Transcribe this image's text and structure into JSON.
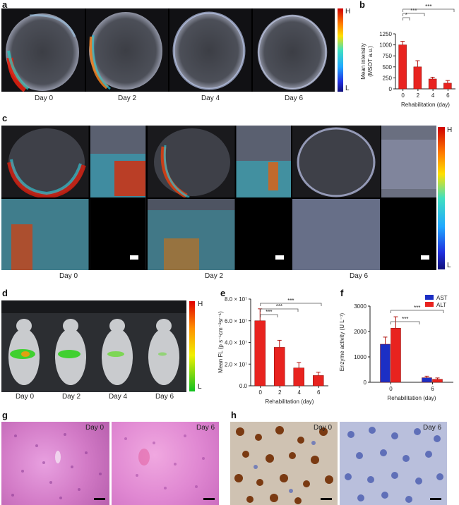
{
  "panels": {
    "a": {
      "label": "a",
      "days": [
        "Day 0",
        "Day 2",
        "Day 4",
        "Day 6"
      ],
      "scale": {
        "high": "H",
        "low": "L"
      }
    },
    "b": {
      "label": "b",
      "chart": {
        "type": "bar",
        "categories": [
          "0",
          "2",
          "4",
          "6"
        ],
        "values": [
          1000,
          500,
          225,
          130
        ],
        "errors": [
          80,
          140,
          40,
          60
        ],
        "ylim": [
          0,
          1250
        ],
        "yticks": [
          "0",
          "250",
          "500",
          "750",
          "1000",
          "1250"
        ],
        "ylabel_line1": "Mean intensity",
        "ylabel_line2": "(MSOT a.u.)",
        "xlabel": "Rehabilitation (day)",
        "sig": [
          "*",
          "***",
          "***"
        ],
        "color": "#e8231f"
      }
    },
    "c": {
      "label": "c",
      "days": [
        "Day 0",
        "Day 2",
        "Day 6"
      ],
      "scale": {
        "high": "H",
        "low": "L"
      }
    },
    "d": {
      "label": "d",
      "days": [
        "Day 0",
        "Day 2",
        "Day 4",
        "Day 6"
      ],
      "scale": {
        "high": "H",
        "low": "L"
      }
    },
    "e": {
      "label": "e",
      "chart": {
        "type": "bar",
        "categories": [
          "0",
          "2",
          "4",
          "6"
        ],
        "values": [
          60000000,
          35500000,
          16500000,
          9500000
        ],
        "errors": [
          11000000,
          6500000,
          5000000,
          3000000
        ],
        "ylim": [
          0,
          80000000
        ],
        "yticks": [
          "0.0",
          "2.0 × 10⁷",
          "4.0 × 10⁷",
          "6.0 × 10⁷",
          "8.0 × 10⁷"
        ],
        "ylabel": "Mean FL (p s⁻¹cm⁻²sr⁻¹)",
        "xlabel": "Rehabilitation (day)",
        "sig": [
          "***",
          "***",
          "***"
        ],
        "color": "#e8231f"
      }
    },
    "f": {
      "label": "f",
      "chart": {
        "type": "bar",
        "categories": [
          "0",
          "6"
        ],
        "series": [
          {
            "name": "AST",
            "values": [
              1500,
              180
            ],
            "errors": [
              280,
              60
            ],
            "color": "#1c2fc4"
          },
          {
            "name": "ALT",
            "values": [
              2130,
              120
            ],
            "errors": [
              450,
              50
            ],
            "color": "#e8231f"
          }
        ],
        "ylim": [
          0,
          3000
        ],
        "yticks": [
          "0",
          "1000",
          "2000",
          "3000"
        ],
        "ylabel": "Enzyme activity (U L⁻¹)",
        "xlabel": "Rehabilitation (day)",
        "sig": [
          "***",
          "***"
        ],
        "legend_position": "top-right"
      }
    },
    "g": {
      "label": "g",
      "days": [
        "Day 0",
        "Day 6"
      ]
    },
    "h": {
      "label": "h",
      "days": [
        "Day 0",
        "Day 6"
      ]
    }
  },
  "colors": {
    "bar_red": "#e8231f",
    "bar_blue": "#1c2fc4",
    "he_stain": "#d978c8",
    "ihc_brown": "#7a3a12",
    "ihc_blue": "#5f6fb8"
  },
  "icons": [
    "rainbow-scale-bar",
    "green-red-scale-bar",
    "scale-bar"
  ]
}
